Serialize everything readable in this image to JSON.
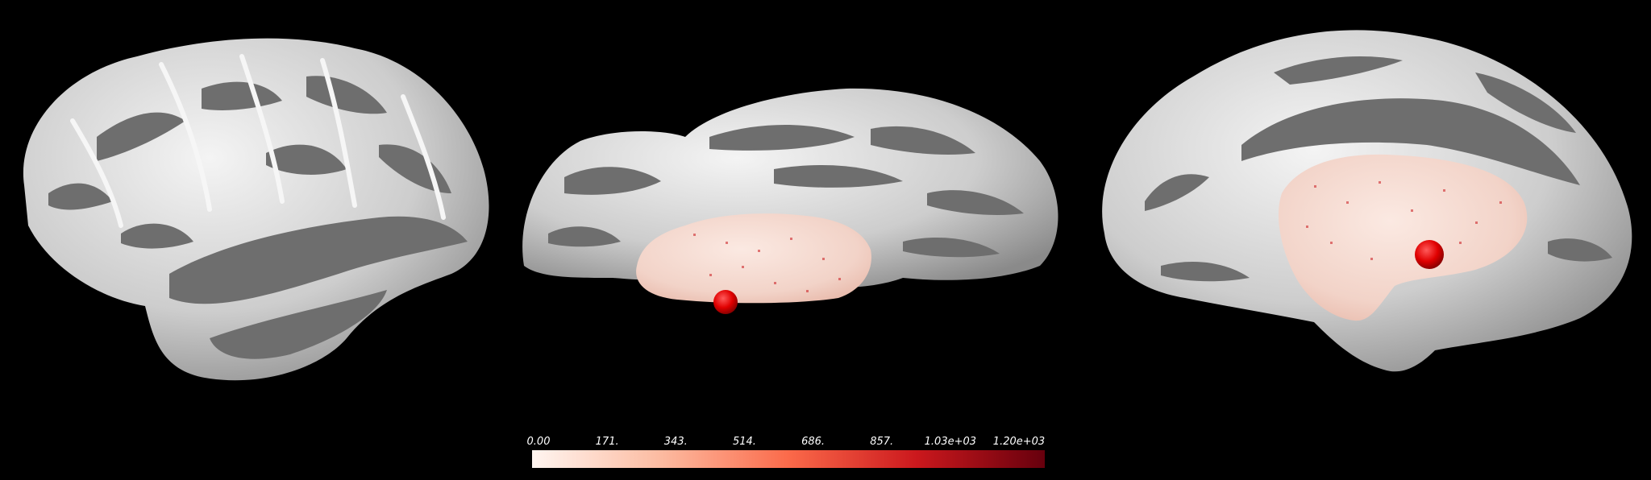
{
  "views": [
    {
      "name": "lateral-view"
    },
    {
      "name": "ventral-view"
    },
    {
      "name": "medial-view"
    }
  ],
  "colorbar": {
    "colors": [
      "#fff5f0",
      "#fcbba1",
      "#fb6a4a",
      "#cb181d",
      "#67000d"
    ],
    "ticks": [
      "0.00",
      "171.",
      "343.",
      "514.",
      "686.",
      "857.",
      "1.03e+03",
      "1.20e+03"
    ]
  },
  "colors": {
    "background": "#000000",
    "gyri": "#cfcfcf",
    "sulci": "#6e6e6e",
    "marker": "#e00000"
  }
}
